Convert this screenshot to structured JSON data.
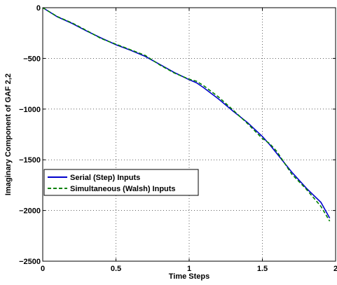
{
  "chart_data": {
    "type": "line",
    "title": "",
    "xlabel": "Time Steps",
    "ylabel": "Imaginary Component of GAF 2,2",
    "xlim": [
      0,
      2
    ],
    "ylim": [
      -2500,
      0
    ],
    "grid": true,
    "legend_position": "middle-left",
    "x_ticks": [
      {
        "value": 0,
        "label": "0"
      },
      {
        "value": 0.5,
        "label": "0.5"
      },
      {
        "value": 1,
        "label": "1"
      },
      {
        "value": 1.5,
        "label": "1.5"
      },
      {
        "value": 2,
        "label": "2"
      }
    ],
    "y_ticks": [
      {
        "value": 0,
        "label": "0"
      },
      {
        "value": -500,
        "label": "−500"
      },
      {
        "value": -1000,
        "label": "−1000"
      },
      {
        "value": -1500,
        "label": "−1500"
      },
      {
        "value": -2000,
        "label": "−2000"
      },
      {
        "value": -2500,
        "label": "−2500"
      }
    ],
    "series": [
      {
        "name": "Serial (Step) Inputs",
        "color": "#0000cc",
        "style": "solid",
        "x": [
          0,
          0.1,
          0.2,
          0.3,
          0.4,
          0.5,
          0.6,
          0.7,
          0.8,
          0.9,
          1.0,
          1.05,
          1.1,
          1.2,
          1.3,
          1.4,
          1.5,
          1.55,
          1.6,
          1.7,
          1.8,
          1.9,
          1.96
        ],
        "y": [
          0,
          -90,
          -155,
          -230,
          -300,
          -365,
          -420,
          -480,
          -560,
          -640,
          -710,
          -740,
          -790,
          -900,
          -1020,
          -1135,
          -1270,
          -1350,
          -1440,
          -1620,
          -1780,
          -1920,
          -2075
        ]
      },
      {
        "name": "Simultaneous (Walsh) Inputs",
        "color": "#008000",
        "style": "dashed",
        "x": [
          0,
          0.1,
          0.2,
          0.3,
          0.4,
          0.5,
          0.6,
          0.7,
          0.8,
          0.9,
          1.0,
          1.05,
          1.1,
          1.2,
          1.3,
          1.4,
          1.5,
          1.55,
          1.6,
          1.7,
          1.8,
          1.9,
          1.96
        ],
        "y": [
          0,
          -88,
          -150,
          -225,
          -305,
          -360,
          -415,
          -470,
          -565,
          -645,
          -705,
          -725,
          -770,
          -880,
          -1010,
          -1145,
          -1290,
          -1340,
          -1420,
          -1640,
          -1790,
          -1960,
          -2105
        ]
      }
    ]
  }
}
